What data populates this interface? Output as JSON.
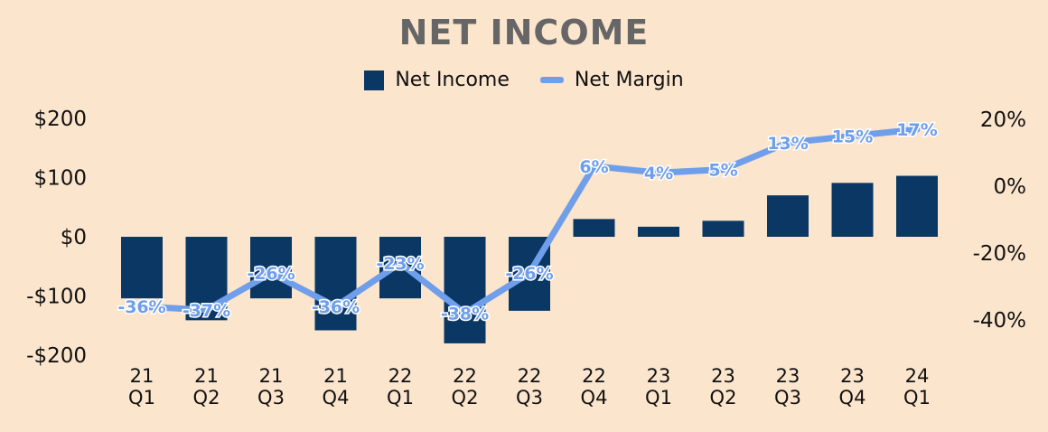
{
  "chart_data": {
    "type": "bar",
    "title": "NET INCOME",
    "categories": [
      [
        "21",
        "Q1"
      ],
      [
        "21",
        "Q2"
      ],
      [
        "21",
        "Q3"
      ],
      [
        "21",
        "Q4"
      ],
      [
        "22",
        "Q1"
      ],
      [
        "22",
        "Q2"
      ],
      [
        "22",
        "Q3"
      ],
      [
        "22",
        "Q4"
      ],
      [
        "23",
        "Q1"
      ],
      [
        "23",
        "Q2"
      ],
      [
        "23",
        "Q3"
      ],
      [
        "23",
        "Q4"
      ],
      [
        "24",
        "Q1"
      ]
    ],
    "series": [
      {
        "name": "Net Income",
        "type": "bar",
        "axis": "left",
        "color": "#0a3763",
        "values": [
          -104,
          -141,
          -104,
          -158,
          -104,
          -180,
          -125,
          30,
          17,
          27,
          70,
          91,
          103
        ]
      },
      {
        "name": "Net Margin",
        "type": "line",
        "axis": "right",
        "color": "#6f9eea",
        "values": [
          -36,
          -37,
          -26,
          -36,
          -23,
          -38,
          -26,
          6,
          4,
          5,
          13,
          15,
          17
        ],
        "labels": [
          "-36%",
          "-37%",
          "-26%",
          "-36%",
          "-23%",
          "-38%",
          "-26%",
          "6%",
          "4%",
          "5%",
          "13%",
          "15%",
          "17%"
        ]
      }
    ],
    "y_left": {
      "ylim": [
        -200,
        200
      ],
      "ticks": [
        200,
        100,
        0,
        -100,
        -200
      ],
      "tick_labels": [
        "$200",
        "$100",
        "$0",
        "-$100",
        "-$200"
      ]
    },
    "y_right": {
      "ylim": [
        -40,
        20
      ],
      "ticks": [
        20,
        0,
        -20,
        -40
      ],
      "tick_labels": [
        "20%",
        "0%",
        "-20%",
        "-40%"
      ]
    },
    "legend": "top-center",
    "grid": false
  }
}
